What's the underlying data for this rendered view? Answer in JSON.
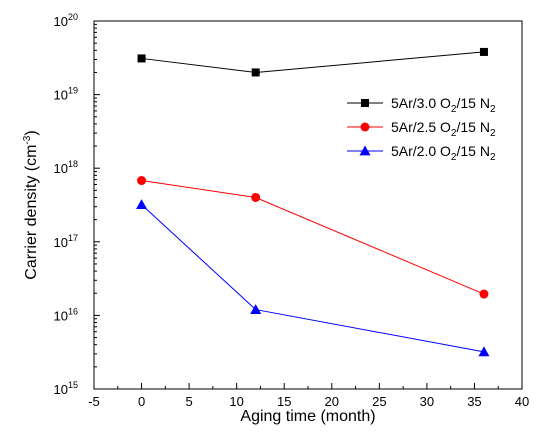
{
  "chart_data": {
    "type": "line",
    "xlabel": "Aging time (month)",
    "ylabel": "Carrier density (cm",
    "ylabel_sup": "-3",
    "ylabel_tail": ")",
    "xlim": [
      -5,
      40
    ],
    "ylim": [
      1000000000000000.0,
      1e+20
    ],
    "y_scale": "log",
    "grid": false,
    "legend_position": "right",
    "x_ticks": [
      -5,
      0,
      5,
      10,
      15,
      20,
      25,
      30,
      35,
      40
    ],
    "x_tick_labels": [
      "-5",
      "0",
      "5",
      "10",
      "15",
      "20",
      "25",
      "30",
      "35",
      "40"
    ],
    "y_ticks": [
      {
        "value": 1000000000000000.0,
        "base": "10",
        "exp": "15"
      },
      {
        "value": 1e+16,
        "base": "10",
        "exp": "16"
      },
      {
        "value": 1e+17,
        "base": "10",
        "exp": "17"
      },
      {
        "value": 1e+18,
        "base": "10",
        "exp": "18"
      },
      {
        "value": 1e+19,
        "base": "10",
        "exp": "19"
      },
      {
        "value": 1e+20,
        "base": "10",
        "exp": "20"
      }
    ],
    "series": [
      {
        "legend_parts": [
          "5Ar/3.0 O",
          "2",
          "/15 N",
          "2"
        ],
        "color": "#000000",
        "marker": "square",
        "x": [
          0,
          12,
          36
        ],
        "y": [
          3.1e+19,
          2e+19,
          3.8e+19
        ]
      },
      {
        "legend_parts": [
          "5Ar/2.5 O",
          "2",
          "/15 N",
          "2"
        ],
        "color": "#ff0000",
        "marker": "circle",
        "x": [
          0,
          12,
          36
        ],
        "y": [
          6.8e+17,
          4e+17,
          1.95e+16
        ]
      },
      {
        "legend_parts": [
          "5Ar/2.0 O",
          "2",
          "/15 N",
          "2"
        ],
        "color": "#0000ff",
        "marker": "triangle",
        "x": [
          0,
          12,
          36
        ],
        "y": [
          3.2e+17,
          1.2e+16,
          3200000000000000.0
        ]
      }
    ]
  }
}
